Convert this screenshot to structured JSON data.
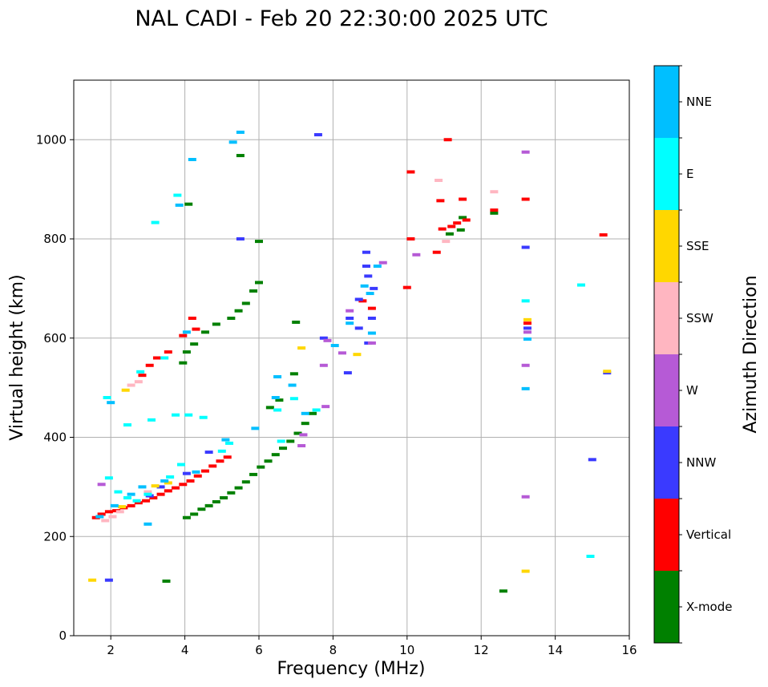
{
  "chart_data": {
    "type": "scatter",
    "title": "NAL CADI - Feb 20 22:30:00 2025 UTC",
    "xlabel": "Frequency (MHz)",
    "ylabel": "Virtual height (km)",
    "xlim": [
      1,
      16
    ],
    "ylim": [
      0,
      1120
    ],
    "xticks": [
      2,
      4,
      6,
      8,
      10,
      12,
      14,
      16
    ],
    "yticks": [
      0,
      200,
      400,
      600,
      800,
      1000
    ],
    "grid": true,
    "colorbar": {
      "label": "Azimuth Direction",
      "categories": [
        {
          "name": "X-mode",
          "color": "#008000"
        },
        {
          "name": "Vertical",
          "color": "#ff0000"
        },
        {
          "name": "NNW",
          "color": "#3a3aff"
        },
        {
          "name": "W",
          "color": "#b65ad6"
        },
        {
          "name": "SSW",
          "color": "#ffb6c1"
        },
        {
          "name": "SSE",
          "color": "#ffd700"
        },
        {
          "name": "E",
          "color": "#00ffff"
        },
        {
          "name": "NNE",
          "color": "#00bfff"
        }
      ]
    },
    "series": [
      {
        "name": "X-mode",
        "points": [
          [
            4.05,
            238
          ],
          [
            4.25,
            245
          ],
          [
            4.45,
            255
          ],
          [
            4.65,
            262
          ],
          [
            4.85,
            270
          ],
          [
            5.05,
            278
          ],
          [
            5.25,
            288
          ],
          [
            5.45,
            298
          ],
          [
            5.65,
            310
          ],
          [
            5.85,
            325
          ],
          [
            6.05,
            340
          ],
          [
            6.25,
            352
          ],
          [
            6.45,
            365
          ],
          [
            6.65,
            378
          ],
          [
            6.85,
            392
          ],
          [
            7.05,
            408
          ],
          [
            7.25,
            428
          ],
          [
            7.45,
            448
          ],
          [
            3.95,
            550
          ],
          [
            4.05,
            572
          ],
          [
            4.25,
            588
          ],
          [
            4.55,
            612
          ],
          [
            4.85,
            628
          ],
          [
            5.25,
            640
          ],
          [
            5.45,
            655
          ],
          [
            5.65,
            670
          ],
          [
            5.85,
            695
          ],
          [
            6.0,
            712
          ],
          [
            6.0,
            795
          ],
          [
            5.5,
            968
          ],
          [
            4.1,
            870
          ],
          [
            3.5,
            110
          ],
          [
            12.6,
            90
          ],
          [
            12.35,
            852
          ],
          [
            11.5,
            843
          ],
          [
            11.45,
            818
          ],
          [
            11.15,
            810
          ],
          [
            6.95,
            528
          ],
          [
            6.55,
            475
          ],
          [
            6.3,
            460
          ],
          [
            7.0,
            632
          ]
        ]
      },
      {
        "name": "Vertical",
        "points": [
          [
            1.6,
            238
          ],
          [
            1.75,
            245
          ],
          [
            1.95,
            250
          ],
          [
            2.15,
            252
          ],
          [
            2.35,
            258
          ],
          [
            2.55,
            262
          ],
          [
            2.75,
            268
          ],
          [
            2.95,
            272
          ],
          [
            3.15,
            278
          ],
          [
            3.35,
            285
          ],
          [
            3.55,
            292
          ],
          [
            3.75,
            298
          ],
          [
            3.95,
            305
          ],
          [
            4.15,
            312
          ],
          [
            4.35,
            322
          ],
          [
            4.55,
            332
          ],
          [
            4.75,
            342
          ],
          [
            4.95,
            352
          ],
          [
            5.15,
            360
          ],
          [
            2.85,
            525
          ],
          [
            3.05,
            545
          ],
          [
            3.25,
            560
          ],
          [
            3.55,
            572
          ],
          [
            3.95,
            605
          ],
          [
            4.2,
            640
          ],
          [
            4.3,
            618
          ],
          [
            10.1,
            800
          ],
          [
            10.95,
            820
          ],
          [
            11.2,
            825
          ],
          [
            11.35,
            832
          ],
          [
            11.6,
            838
          ],
          [
            10.8,
            773
          ],
          [
            10.0,
            702
          ],
          [
            10.1,
            935
          ],
          [
            10.9,
            877
          ],
          [
            11.1,
            1000
          ],
          [
            11.5,
            880
          ],
          [
            12.35,
            858
          ],
          [
            13.25,
            630
          ],
          [
            13.2,
            880
          ],
          [
            15.3,
            808
          ],
          [
            8.8,
            675
          ],
          [
            9.05,
            660
          ]
        ]
      },
      {
        "name": "NNW",
        "points": [
          [
            7.6,
            1010
          ],
          [
            8.4,
            530
          ],
          [
            8.45,
            640
          ],
          [
            8.7,
            620
          ],
          [
            8.95,
            590
          ],
          [
            9.05,
            640
          ],
          [
            9.1,
            700
          ],
          [
            8.9,
            773
          ],
          [
            8.9,
            745
          ],
          [
            8.95,
            725
          ],
          [
            7.75,
            600
          ],
          [
            8.7,
            678
          ],
          [
            13.2,
            783
          ],
          [
            13.25,
            620
          ],
          [
            15.0,
            355
          ],
          [
            15.4,
            530
          ],
          [
            5.5,
            800
          ],
          [
            3.05,
            282
          ],
          [
            3.35,
            300
          ],
          [
            4.05,
            327
          ],
          [
            4.65,
            370
          ],
          [
            1.95,
            112
          ]
        ]
      },
      {
        "name": "W",
        "points": [
          [
            13.2,
            975
          ],
          [
            13.2,
            545
          ],
          [
            13.2,
            280
          ],
          [
            13.25,
            612
          ],
          [
            7.75,
            545
          ],
          [
            7.85,
            595
          ],
          [
            8.25,
            570
          ],
          [
            8.45,
            655
          ],
          [
            9.05,
            590
          ],
          [
            7.2,
            405
          ],
          [
            7.15,
            383
          ],
          [
            7.8,
            462
          ],
          [
            9.35,
            752
          ],
          [
            10.25,
            768
          ],
          [
            1.75,
            305
          ]
        ]
      },
      {
        "name": "SSW",
        "points": [
          [
            2.55,
            505
          ],
          [
            2.75,
            512
          ],
          [
            12.35,
            895
          ],
          [
            10.85,
            918
          ],
          [
            11.05,
            795
          ],
          [
            1.85,
            232
          ],
          [
            2.05,
            240
          ],
          [
            2.25,
            250
          ],
          [
            3.0,
            290
          ]
        ]
      },
      {
        "name": "SSE",
        "points": [
          [
            2.4,
            495
          ],
          [
            13.2,
            130
          ],
          [
            13.25,
            637
          ],
          [
            8.65,
            567
          ],
          [
            15.4,
            533
          ],
          [
            1.5,
            112
          ],
          [
            2.3,
            260
          ],
          [
            3.2,
            302
          ],
          [
            3.55,
            308
          ],
          [
            7.15,
            580
          ]
        ]
      },
      {
        "name": "E",
        "points": [
          [
            4.1,
            445
          ],
          [
            3.75,
            445
          ],
          [
            4.5,
            440
          ],
          [
            3.1,
            435
          ],
          [
            2.45,
            425
          ],
          [
            3.8,
            888
          ],
          [
            3.2,
            833
          ],
          [
            13.2,
            675
          ],
          [
            14.7,
            707
          ],
          [
            14.95,
            160
          ],
          [
            1.95,
            318
          ],
          [
            2.2,
            290
          ],
          [
            2.45,
            278
          ],
          [
            2.7,
            272
          ],
          [
            3.0,
            285
          ],
          [
            3.6,
            320
          ],
          [
            3.9,
            345
          ],
          [
            5.0,
            372
          ],
          [
            5.2,
            388
          ],
          [
            6.6,
            392
          ],
          [
            6.5,
            455
          ],
          [
            6.95,
            478
          ],
          [
            7.55,
            455
          ],
          [
            1.9,
            480
          ],
          [
            2.8,
            532
          ],
          [
            3.45,
            560
          ]
        ]
      },
      {
        "name": "NNE",
        "points": [
          [
            5.5,
            1015
          ],
          [
            5.3,
            995
          ],
          [
            4.2,
            960
          ],
          [
            3.85,
            868
          ],
          [
            13.25,
            598
          ],
          [
            13.2,
            498
          ],
          [
            9.0,
            690
          ],
          [
            8.85,
            705
          ],
          [
            8.45,
            630
          ],
          [
            9.05,
            610
          ],
          [
            6.5,
            522
          ],
          [
            6.45,
            480
          ],
          [
            6.9,
            505
          ],
          [
            7.25,
            448
          ],
          [
            8.05,
            585
          ],
          [
            9.2,
            745
          ],
          [
            1.7,
            240
          ],
          [
            2.1,
            262
          ],
          [
            2.55,
            285
          ],
          [
            2.85,
            300
          ],
          [
            3.45,
            312
          ],
          [
            4.3,
            330
          ],
          [
            5.1,
            395
          ],
          [
            5.9,
            418
          ],
          [
            2.0,
            470
          ],
          [
            4.05,
            612
          ],
          [
            3.0,
            225
          ]
        ]
      }
    ]
  }
}
